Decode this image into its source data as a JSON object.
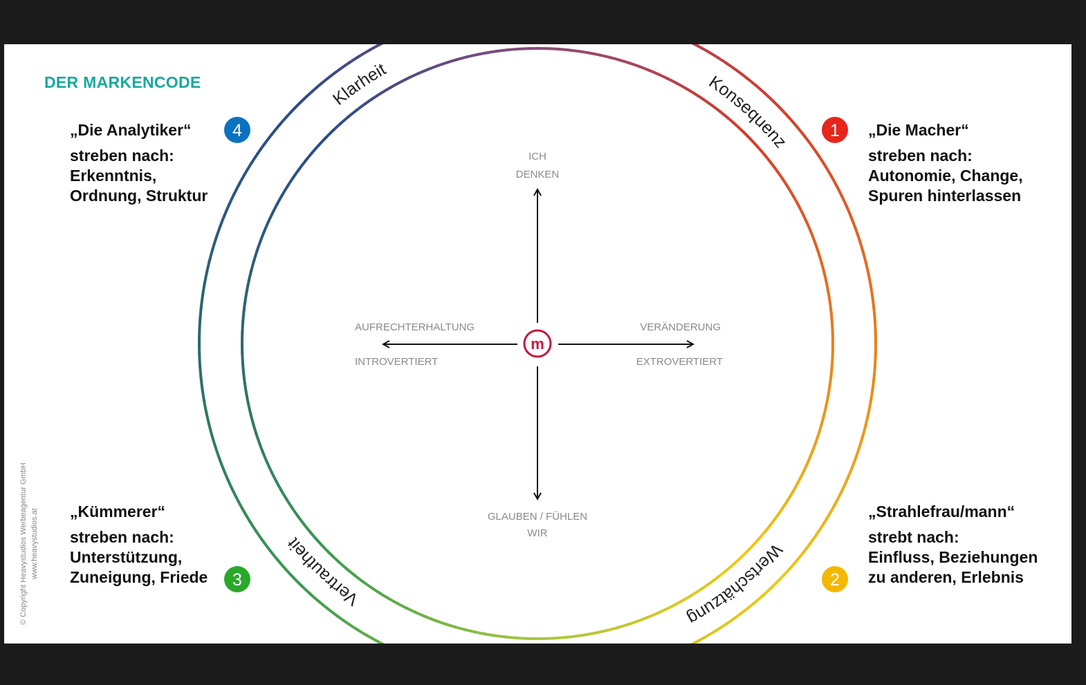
{
  "title": "DER MARKENCODE",
  "ring_labels": [
    "Klarheit",
    "Konsequenz",
    "Wertschätzung",
    "Vertrautheit"
  ],
  "axes": {
    "top": [
      "ICH",
      "DENKEN"
    ],
    "bottom": [
      "GLAUBEN / FÜHLEN",
      "WIR"
    ],
    "left": [
      "AUFRECHTERHALTUNG",
      "INTROVERTIERT"
    ],
    "right": [
      "VERÄNDERUNG",
      "EXTROVERTIERT"
    ],
    "center_logo": "m"
  },
  "quadrants": [
    {
      "number": "1",
      "color": "#e8251c",
      "name": "„Die Macher“",
      "lines": [
        "streben nach:",
        "Autonomie, Change,",
        "Spuren hinterlassen"
      ]
    },
    {
      "number": "2",
      "color": "#f5b800",
      "name": "„Strahlefrau/mann“",
      "lines": [
        "strebt nach:",
        "Einfluss, Beziehungen",
        "zu anderen, Erlebnis"
      ]
    },
    {
      "number": "3",
      "color": "#2aa82a",
      "name": "„Kümmerer“",
      "lines": [
        "streben nach:",
        "Unterstützung,",
        "Zuneigung, Friede"
      ]
    },
    {
      "number": "4",
      "color": "#0a72c0",
      "name": "„Die Analytiker“",
      "lines": [
        "streben nach:",
        "Erkenntnis,",
        "Ordnung, Struktur"
      ]
    }
  ],
  "copyright": [
    "© Copyright Heavystudios Werbeagentur GmbH",
    "www.heavystudios.at"
  ],
  "colors": {
    "accent": "#17a99b",
    "logo": "#c8163e"
  }
}
